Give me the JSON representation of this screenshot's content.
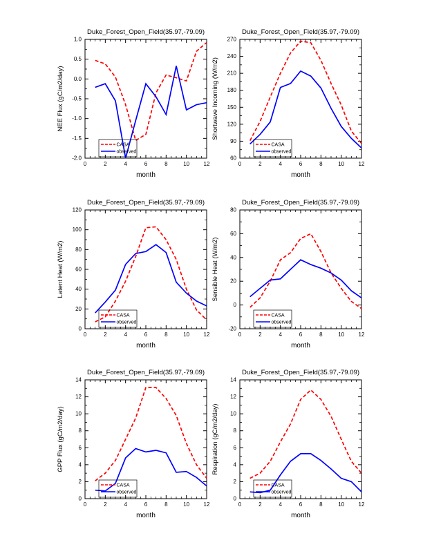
{
  "page": {
    "background": "#ffffff"
  },
  "colors": {
    "casa": "#ff0000",
    "observed": "#0000ff",
    "axis": "#000000"
  },
  "chart_data": [
    {
      "id": "nee-flux",
      "type": "line",
      "title": "Duke_Forest_Open_Field(35.97,-79.09)",
      "xlabel": "month",
      "ylabel": "NEE Flux (gC/m2/day)",
      "xlim": [
        0,
        12
      ],
      "ylim": [
        -2.0,
        1.0
      ],
      "xticks": [
        0,
        2,
        4,
        6,
        8,
        10,
        12
      ],
      "x_minor_step": 0.5,
      "ytick_values": [
        1.0,
        0.5,
        0.0,
        -0.5,
        -1.0,
        -1.5,
        -2.0
      ],
      "ytick_labels": [
        "1.0",
        "0.5",
        "0.0",
        "-0.5",
        "-1.0",
        "-1.5",
        "-2.0"
      ],
      "grid": false,
      "legend_position": "lower-left",
      "x": [
        1,
        2,
        3,
        4,
        5,
        6,
        7,
        8,
        9,
        10,
        11,
        12
      ],
      "series": [
        {
          "name": "CASA",
          "color": "#ff0000",
          "line_style": "dashed",
          "values": [
            0.47,
            0.38,
            0.05,
            -0.65,
            -1.55,
            -1.4,
            -0.35,
            0.1,
            0.03,
            -0.05,
            0.7,
            0.92
          ]
        },
        {
          "name": "observed",
          "color": "#0000ff",
          "line_style": "solid",
          "values": [
            -0.21,
            -0.12,
            -0.55,
            -2.0,
            -1.05,
            -0.12,
            -0.45,
            -0.9,
            0.33,
            -0.78,
            -0.65,
            -0.6
          ]
        }
      ]
    },
    {
      "id": "shortwave-incoming",
      "type": "line",
      "title": "Duke_Forest_Open_Field(35.97,-79.09)",
      "xlabel": "month",
      "ylabel": "Shortwave Incoming (W/m2)",
      "xlim": [
        0,
        12
      ],
      "ylim": [
        60,
        270
      ],
      "xticks": [
        0,
        2,
        4,
        6,
        8,
        10,
        12
      ],
      "x_minor_step": 0.5,
      "ytick_values": [
        270,
        240,
        210,
        180,
        150,
        120,
        90,
        60
      ],
      "ytick_labels": [
        "270",
        "240",
        "210",
        "180",
        "150",
        "120",
        "90",
        "60"
      ],
      "grid": false,
      "legend_position": "lower-left",
      "x": [
        1,
        2,
        3,
        4,
        5,
        6,
        7,
        8,
        9,
        10,
        11,
        12
      ],
      "series": [
        {
          "name": "CASA",
          "color": "#ff0000",
          "line_style": "dashed",
          "values": [
            91,
            125,
            168,
            210,
            246,
            267,
            264,
            233,
            192,
            154,
            108,
            86
          ]
        },
        {
          "name": "observed",
          "color": "#0000ff",
          "line_style": "solid",
          "values": [
            85,
            102,
            124,
            185,
            192,
            214,
            205,
            184,
            148,
            116,
            95,
            78
          ]
        }
      ]
    },
    {
      "id": "latent-heat",
      "type": "line",
      "title": "Duke_Forest_Open_Field(35.97,-79.09)",
      "xlabel": "month",
      "ylabel": "Latent Heat (W/m2)",
      "xlim": [
        0,
        12
      ],
      "ylim": [
        0,
        120
      ],
      "xticks": [
        0,
        2,
        4,
        6,
        8,
        10,
        12
      ],
      "x_minor_step": 0.5,
      "ytick_values": [
        120,
        100,
        80,
        60,
        40,
        20,
        0
      ],
      "ytick_labels": [
        "120",
        "100",
        "80",
        "60",
        "40",
        "20",
        "0"
      ],
      "grid": false,
      "legend_position": "lower-left",
      "x": [
        1,
        2,
        3,
        4,
        5,
        6,
        7,
        8,
        9,
        10,
        11,
        12
      ],
      "series": [
        {
          "name": "CASA",
          "color": "#ff0000",
          "line_style": "dashed",
          "values": [
            7,
            12,
            28,
            48,
            73,
            102,
            103,
            90,
            70,
            40,
            19,
            9
          ]
        },
        {
          "name": "observed",
          "color": "#0000ff",
          "line_style": "solid",
          "values": [
            16,
            27,
            39,
            65,
            76,
            78,
            85,
            77,
            47,
            36,
            28,
            23
          ]
        }
      ]
    },
    {
      "id": "sensible-heat",
      "type": "line",
      "title": "Duke_Forest_Open_Field(35.97,-79.09)",
      "xlabel": "month",
      "ylabel": "Sensible Heat (W/m2)",
      "xlim": [
        0,
        12
      ],
      "ylim": [
        -20,
        80
      ],
      "xticks": [
        0,
        2,
        4,
        6,
        8,
        10,
        12
      ],
      "x_minor_step": 0.5,
      "ytick_values": [
        80,
        60,
        40,
        20,
        0,
        -20
      ],
      "ytick_labels": [
        "80",
        "60",
        "40",
        "20",
        "0",
        "-20"
      ],
      "grid": false,
      "legend_position": "lower-left",
      "x": [
        1,
        2,
        3,
        4,
        5,
        6,
        7,
        8,
        9,
        10,
        11,
        12
      ],
      "series": [
        {
          "name": "CASA",
          "color": "#ff0000",
          "line_style": "dashed",
          "values": [
            -2,
            6,
            20,
            38,
            44,
            56,
            60,
            45,
            27,
            14,
            3,
            -3
          ]
        },
        {
          "name": "observed",
          "color": "#0000ff",
          "line_style": "solid",
          "values": [
            7,
            14,
            21,
            22,
            30,
            38,
            34,
            31,
            27,
            21,
            12,
            6
          ]
        }
      ]
    },
    {
      "id": "gpp-flux",
      "type": "line",
      "title": "Duke_Forest_Open_Field(35.97,-79.09)",
      "xlabel": "month",
      "ylabel": "GPP Flux (gC/m2/day)",
      "xlim": [
        0,
        12
      ],
      "ylim": [
        0,
        14
      ],
      "xticks": [
        0,
        2,
        4,
        6,
        8,
        10,
        12
      ],
      "x_minor_step": 0.5,
      "ytick_values": [
        14,
        12,
        10,
        8,
        6,
        4,
        2,
        0
      ],
      "ytick_labels": [
        "14",
        "12",
        "10",
        "8",
        "6",
        "4",
        "2",
        "0"
      ],
      "grid": false,
      "legend_position": "lower-left",
      "x": [
        1,
        2,
        3,
        4,
        5,
        6,
        7,
        8,
        9,
        10,
        11,
        12
      ],
      "series": [
        {
          "name": "CASA",
          "color": "#ff0000",
          "line_style": "dashed",
          "values": [
            2.1,
            3.0,
            4.5,
            7.0,
            9.5,
            13.1,
            13.1,
            11.8,
            9.8,
            6.5,
            4.0,
            2.4
          ]
        },
        {
          "name": "observed",
          "color": "#0000ff",
          "line_style": "solid",
          "values": [
            1.0,
            0.9,
            1.8,
            4.8,
            5.9,
            5.5,
            5.7,
            5.4,
            3.1,
            3.2,
            2.5,
            1.5
          ]
        }
      ]
    },
    {
      "id": "respiration",
      "type": "line",
      "title": "Duke_Forest_Open_Field(35.97,-79.09)",
      "xlabel": "month",
      "ylabel": "Respiration (gC/m2/day)",
      "xlim": [
        0,
        12
      ],
      "ylim": [
        0,
        14
      ],
      "xticks": [
        0,
        2,
        4,
        6,
        8,
        10,
        12
      ],
      "x_minor_step": 0.5,
      "ytick_values": [
        14,
        12,
        10,
        8,
        6,
        4,
        2,
        0
      ],
      "ytick_labels": [
        "14",
        "12",
        "10",
        "8",
        "6",
        "4",
        "2",
        "0"
      ],
      "grid": false,
      "legend_position": "lower-left",
      "x": [
        1,
        2,
        3,
        4,
        5,
        6,
        7,
        8,
        9,
        10,
        11,
        12
      ],
      "series": [
        {
          "name": "CASA",
          "color": "#ff0000",
          "line_style": "dashed",
          "values": [
            2.4,
            3.0,
            4.4,
            6.7,
            8.8,
            11.7,
            12.8,
            11.7,
            9.7,
            7.0,
            4.4,
            3.0
          ]
        },
        {
          "name": "observed",
          "color": "#0000ff",
          "line_style": "solid",
          "values": [
            0.8,
            0.7,
            1.0,
            2.8,
            4.4,
            5.3,
            5.3,
            4.5,
            3.5,
            2.4,
            2.0,
            0.8
          ]
        }
      ]
    }
  ]
}
